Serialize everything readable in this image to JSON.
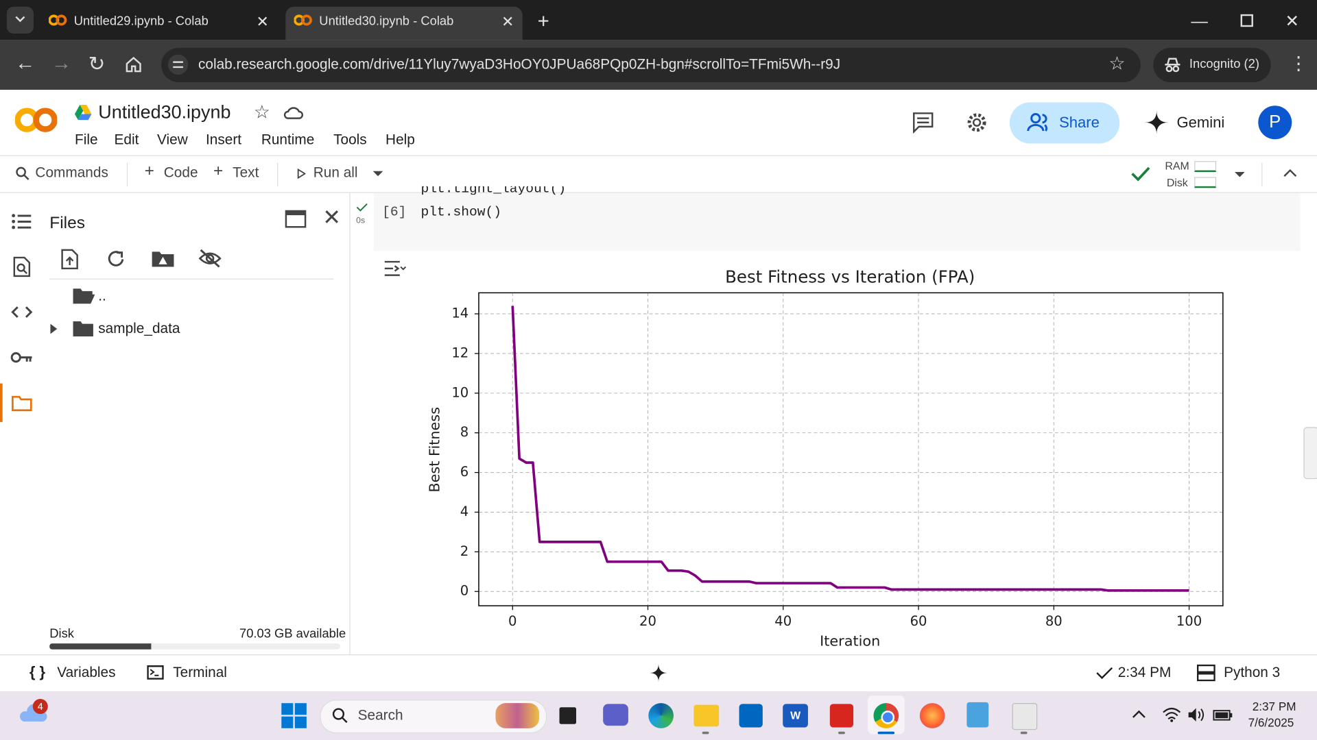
{
  "browser": {
    "tabs": [
      "Untitled29.ipynb - Colab",
      "Untitled30.ipynb - Colab"
    ],
    "url": "colab.research.google.com/drive/11Yluy7wyaD3HoOY0JPUa68PQp0ZH-bgn#scrollTo=TFmi5Wh--r9J",
    "incognito": "Incognito (2)"
  },
  "notebook": {
    "title": "Untitled30.ipynb",
    "menu": [
      "File",
      "Edit",
      "View",
      "Insert",
      "Runtime",
      "Tools",
      "Help"
    ],
    "share": "Share",
    "gemini": "Gemini",
    "avatar": "P"
  },
  "toolbar": {
    "commands": "Commands",
    "code": "Code",
    "text": "Text",
    "run_all": "Run all",
    "ram": "RAM",
    "disk": "Disk"
  },
  "files": {
    "title": "Files",
    "items": [
      "..",
      "sample_data"
    ],
    "disk_label": "Disk",
    "disk_available": "70.03 GB available"
  },
  "cell": {
    "exec_time": "0s",
    "count": "[6]",
    "code_prev": "plt.tight_layout()",
    "code": "plt.show()"
  },
  "status": {
    "variables": "Variables",
    "terminal": "Terminal",
    "time": "2:34 PM",
    "runtime": "Python 3"
  },
  "taskbar": {
    "badge": "4",
    "search": "Search",
    "time": "2:37 PM",
    "date": "7/6/2025"
  },
  "chart_data": {
    "type": "line",
    "title": "Best Fitness vs Iteration (FPA)",
    "x_label": "Iteration",
    "y_label": "Best Fitness",
    "x": [
      0,
      1,
      2,
      3,
      4,
      5,
      6,
      7,
      8,
      9,
      10,
      11,
      12,
      13,
      14,
      15,
      16,
      17,
      18,
      19,
      20,
      21,
      22,
      23,
      24,
      25,
      26,
      27,
      28,
      29,
      30,
      31,
      32,
      33,
      34,
      35,
      36,
      37,
      38,
      39,
      40,
      41,
      42,
      43,
      44,
      45,
      46,
      47,
      48,
      49,
      50,
      51,
      52,
      53,
      54,
      55,
      56,
      57,
      58,
      59,
      60,
      61,
      62,
      63,
      64,
      65,
      66,
      67,
      68,
      69,
      70,
      71,
      72,
      73,
      74,
      75,
      76,
      77,
      78,
      79,
      80,
      81,
      82,
      83,
      84,
      85,
      86,
      87,
      88,
      89,
      90,
      91,
      92,
      93,
      94,
      95,
      96,
      97,
      98,
      99,
      100
    ],
    "values": [
      14.4,
      6.7,
      6.5,
      6.5,
      2.5,
      2.5,
      2.5,
      2.5,
      2.5,
      2.5,
      2.5,
      2.5,
      2.5,
      2.5,
      1.5,
      1.5,
      1.5,
      1.5,
      1.5,
      1.5,
      1.5,
      1.5,
      1.5,
      1.05,
      1.05,
      1.05,
      1.0,
      0.8,
      0.5,
      0.5,
      0.5,
      0.5,
      0.5,
      0.5,
      0.5,
      0.5,
      0.42,
      0.42,
      0.42,
      0.42,
      0.42,
      0.42,
      0.42,
      0.42,
      0.42,
      0.42,
      0.42,
      0.42,
      0.2,
      0.2,
      0.2,
      0.2,
      0.2,
      0.2,
      0.2,
      0.2,
      0.1,
      0.1,
      0.1,
      0.1,
      0.1,
      0.1,
      0.1,
      0.1,
      0.1,
      0.1,
      0.1,
      0.1,
      0.1,
      0.1,
      0.1,
      0.1,
      0.1,
      0.1,
      0.1,
      0.1,
      0.1,
      0.1,
      0.1,
      0.1,
      0.1,
      0.1,
      0.1,
      0.1,
      0.1,
      0.1,
      0.1,
      0.1,
      0.05,
      0.05,
      0.05,
      0.05,
      0.05,
      0.05,
      0.05,
      0.05,
      0.05,
      0.05,
      0.05,
      0.05,
      0.05
    ],
    "color": "#800080",
    "xlim": [
      -5,
      105
    ],
    "ylim": [
      -0.72,
      15.06
    ],
    "xticks": [
      0,
      20,
      40,
      60,
      80,
      100
    ],
    "yticks": [
      0,
      2,
      4,
      6,
      8,
      10,
      12,
      14
    ],
    "grid": true
  }
}
